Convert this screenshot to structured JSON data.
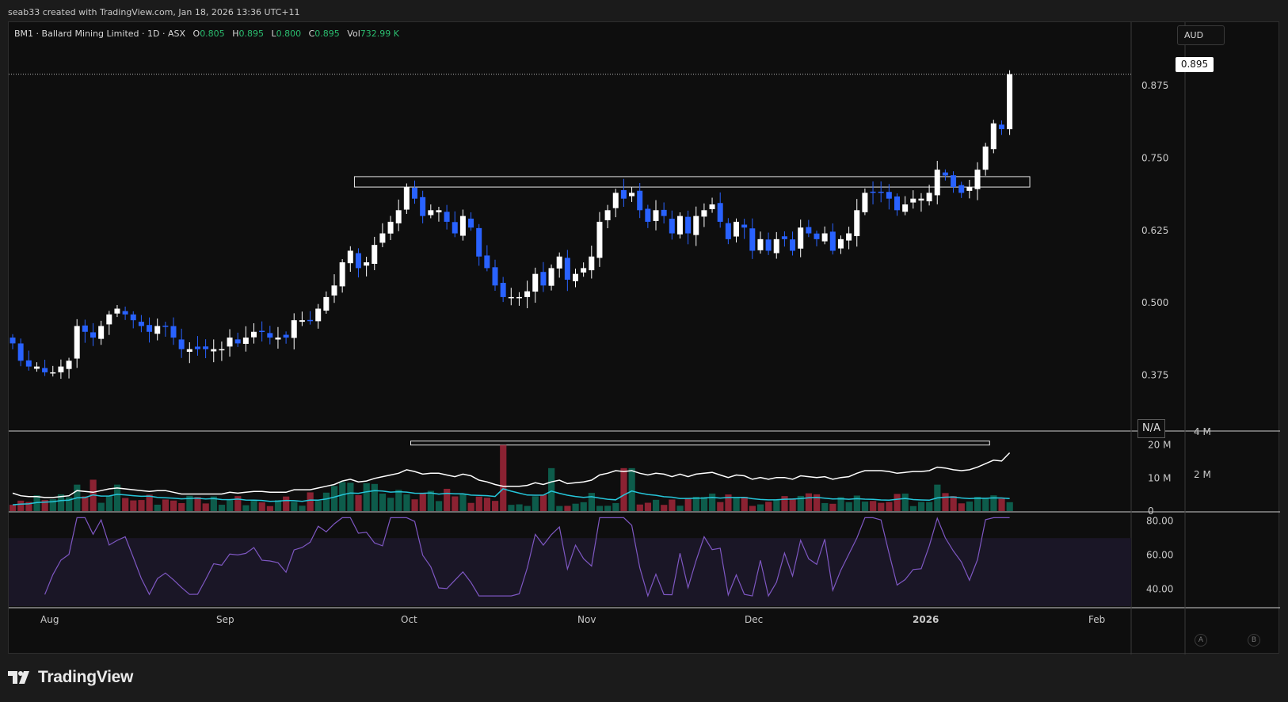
{
  "header": {
    "watermark": "seab33 created with TradingView.com, Jan 18, 2026 13:36 UTC+11"
  },
  "legend": {
    "symbol": "BM1 · Ballard Mining Limited · 1D · ASX",
    "open_label": "O",
    "open": "0.805",
    "high_label": "H",
    "high": "0.895",
    "low_label": "L",
    "low": "0.800",
    "close_label": "C",
    "close": "0.895",
    "vol_label": "Vol",
    "vol": "732.99 K"
  },
  "currency": "AUD",
  "last_price": "0.895",
  "na_badge": "N/A",
  "buttons": {
    "a": "A",
    "b": "B"
  },
  "brand": {
    "name": "TradingView",
    "logo_icon": "tradingview-logo-icon"
  },
  "colors": {
    "up": "#ffffff",
    "down": "#2962ff",
    "vol_up": "#0d5c4b",
    "vol_down": "#8b2232",
    "ma": "#ffffff",
    "vol_ma": "#26c6da",
    "rsi": "#7e57c2"
  },
  "chart_data": [
    {
      "type": "candlestick",
      "ylim": [
        0.28,
        0.93
      ],
      "y_ticks": [
        "0.875",
        "0.750",
        "0.625",
        "0.500",
        "0.375"
      ],
      "x_tick_labels": [
        "Aug",
        "Sep",
        "Oct",
        "Nov",
        "Dec",
        "2026",
        "Feb"
      ],
      "close": [
        0.43,
        0.4,
        0.39,
        0.39,
        0.38,
        0.38,
        0.39,
        0.4,
        0.46,
        0.45,
        0.44,
        0.46,
        0.48,
        0.49,
        0.48,
        0.47,
        0.46,
        0.45,
        0.46,
        0.46,
        0.44,
        0.42,
        0.42,
        0.42,
        0.42,
        0.42,
        0.42,
        0.44,
        0.43,
        0.44,
        0.45,
        0.45,
        0.44,
        0.44,
        0.44,
        0.47,
        0.47,
        0.47,
        0.49,
        0.51,
        0.53,
        0.57,
        0.59,
        0.56,
        0.57,
        0.6,
        0.62,
        0.64,
        0.66,
        0.7,
        0.68,
        0.65,
        0.66,
        0.66,
        0.64,
        0.62,
        0.65,
        0.63,
        0.58,
        0.56,
        0.53,
        0.51,
        0.51,
        0.51,
        0.52,
        0.55,
        0.53,
        0.56,
        0.58,
        0.54,
        0.55,
        0.56,
        0.58,
        0.64,
        0.66,
        0.69,
        0.68,
        0.69,
        0.66,
        0.64,
        0.66,
        0.65,
        0.62,
        0.65,
        0.62,
        0.65,
        0.66,
        0.67,
        0.64,
        0.61,
        0.64,
        0.63,
        0.59,
        0.61,
        0.59,
        0.61,
        0.61,
        0.59,
        0.63,
        0.62,
        0.61,
        0.62,
        0.59,
        0.61,
        0.62,
        0.66,
        0.69,
        0.69,
        0.69,
        0.68,
        0.66,
        0.67,
        0.68,
        0.68,
        0.69,
        0.73,
        0.72,
        0.7,
        0.69,
        0.7,
        0.73,
        0.77,
        0.81,
        0.8,
        0.895
      ],
      "volume_ylim": [
        0,
        24
      ],
      "volume_ticks": [
        "20 M",
        "10 M",
        "0"
      ],
      "volume_right_ticks": [
        "4 M",
        "2 M"
      ],
      "rsi_ylim": [
        30,
        85
      ],
      "rsi_ticks": [
        "80.00",
        "60.00",
        "40.00"
      ],
      "rsi_band": [
        30,
        70
      ],
      "zones": [
        {
          "pane": "price",
          "from_index": 43,
          "to_index": 127,
          "low": 0.7,
          "high": 0.718
        },
        {
          "pane": "volume",
          "from_index": 50,
          "to_index": 122,
          "low": 20.0,
          "high": 21.2
        }
      ]
    }
  ]
}
